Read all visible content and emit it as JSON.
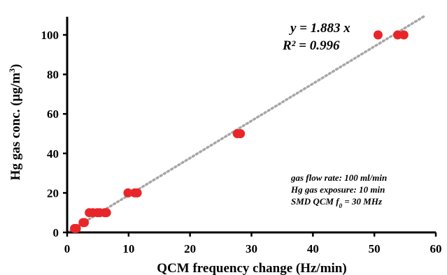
{
  "chart_data": {
    "type": "scatter",
    "xlabel": "QCM frequency change (Hz/min)",
    "ylabel_main": "Hg gas conc. (μg/m",
    "ylabel_sup": "3",
    "ylabel_end": ")",
    "xlim": [
      0,
      60
    ],
    "ylim": [
      0,
      110
    ],
    "xticks": [
      0,
      10,
      20,
      30,
      40,
      50,
      60
    ],
    "yticks": [
      0,
      20,
      40,
      60,
      80,
      100
    ],
    "grid": false,
    "point_color": "#e8262a",
    "fit_color": "#a6a6a6",
    "points": [
      {
        "x": 1.2,
        "y": 2
      },
      {
        "x": 1.5,
        "y": 2
      },
      {
        "x": 2.6,
        "y": 5
      },
      {
        "x": 2.8,
        "y": 5
      },
      {
        "x": 3.6,
        "y": 10
      },
      {
        "x": 4.2,
        "y": 10
      },
      {
        "x": 4.9,
        "y": 10
      },
      {
        "x": 5.3,
        "y": 10
      },
      {
        "x": 6.1,
        "y": 10
      },
      {
        "x": 6.4,
        "y": 10
      },
      {
        "x": 9.9,
        "y": 20
      },
      {
        "x": 11.0,
        "y": 20
      },
      {
        "x": 11.4,
        "y": 20
      },
      {
        "x": 27.7,
        "y": 50
      },
      {
        "x": 28.2,
        "y": 50
      },
      {
        "x": 50.6,
        "y": 100
      },
      {
        "x": 53.8,
        "y": 100
      },
      {
        "x": 54.8,
        "y": 100
      }
    ],
    "fit": {
      "slope": 1.883,
      "x_range": [
        0,
        58.4
      ],
      "equation": "y = 1.883 x",
      "r2_label": "R² = 0.996"
    },
    "conditions": {
      "flow": "gas flow rate: 100 ml/min",
      "exposure": "Hg gas exposure: 10 min",
      "qcm_main": "SMD QCM ",
      "qcm_f": "f",
      "qcm_sub": "0",
      "qcm_value": " = 30 MHz"
    }
  }
}
